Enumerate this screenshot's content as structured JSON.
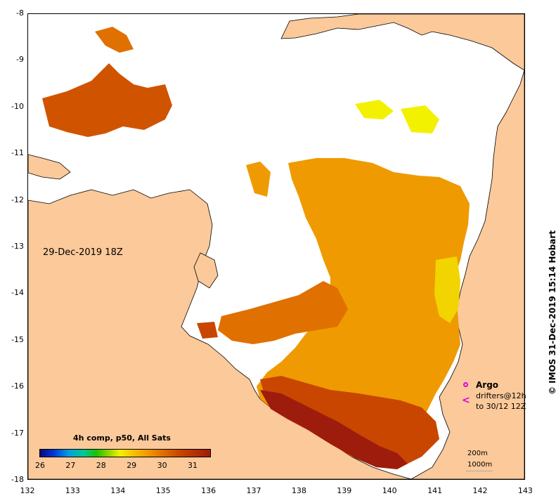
{
  "map": {
    "title_date": "29-Dec-2019 18Z",
    "latitude_labels": [
      "-8",
      "-9",
      "-10",
      "-11",
      "-12",
      "-13",
      "-14",
      "-15",
      "-16",
      "-17",
      "-18"
    ],
    "longitude_labels": [
      "132",
      "133",
      "134",
      "135",
      "136",
      "137",
      "138",
      "139",
      "140",
      "141",
      "142",
      "143"
    ],
    "colors": {
      "land": "#fbc99a",
      "coast": "#000000",
      "no_data": "#ffffff",
      "sst_warmest": "#9e1c0c",
      "sst_warm": "#d05400",
      "sst_mid": "#ef9a00",
      "sst_cool": "#f2f200"
    }
  },
  "legend": {
    "title": "4h comp, p50, All Sats",
    "colorbar_labels": [
      "26",
      "27",
      "28",
      "29",
      "30",
      "31"
    ]
  },
  "markers": {
    "argo_label": "Argo",
    "drifters_label": "drifters@12h",
    "drifters_date": "to 30/12 12Z",
    "drifter_symbol": "<"
  },
  "isobaths": {
    "line1": "200m",
    "line2": "1000m"
  },
  "credit": "© IMOS 31-Dec-2019 15:14 Hobart"
}
